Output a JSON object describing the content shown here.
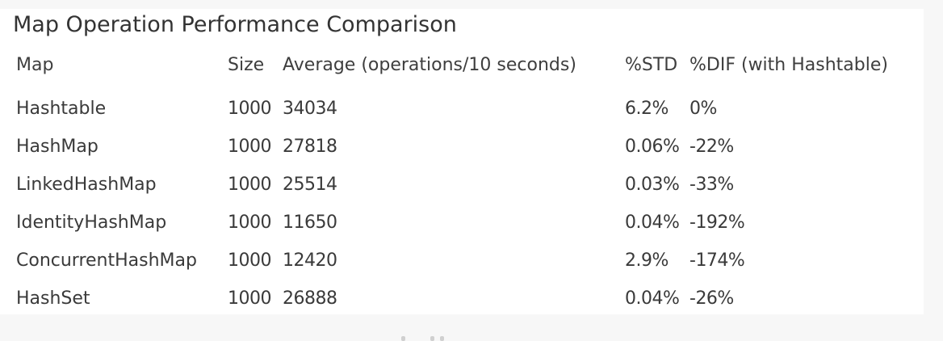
{
  "title": "Map Operation Performance Comparison",
  "table": {
    "headers": {
      "map": "Map",
      "size": "Size",
      "average": "Average (operations/10 seconds)",
      "std": "%STD",
      "dif": "%DIF (with Hashtable)"
    },
    "rows": [
      {
        "map": "Hashtable",
        "size": "1000",
        "average": "34034",
        "std": "6.2%",
        "dif": "0%"
      },
      {
        "map": "HashMap",
        "size": "1000",
        "average": "27818",
        "std": "0.06%",
        "dif": "-22%"
      },
      {
        "map": "LinkedHashMap",
        "size": "1000",
        "average": "25514",
        "std": "0.03%",
        "dif": "-33%"
      },
      {
        "map": "IdentityHashMap",
        "size": "1000",
        "average": "11650",
        "std": "0.04%",
        "dif": "-192%"
      },
      {
        "map": "ConcurrentHashMap",
        "size": "1000",
        "average": "12420",
        "std": "2.9%",
        "dif": "-174%"
      },
      {
        "map": "HashSet",
        "size": "1000",
        "average": "26888",
        "std": "0.04%",
        "dif": "-26%"
      }
    ]
  }
}
